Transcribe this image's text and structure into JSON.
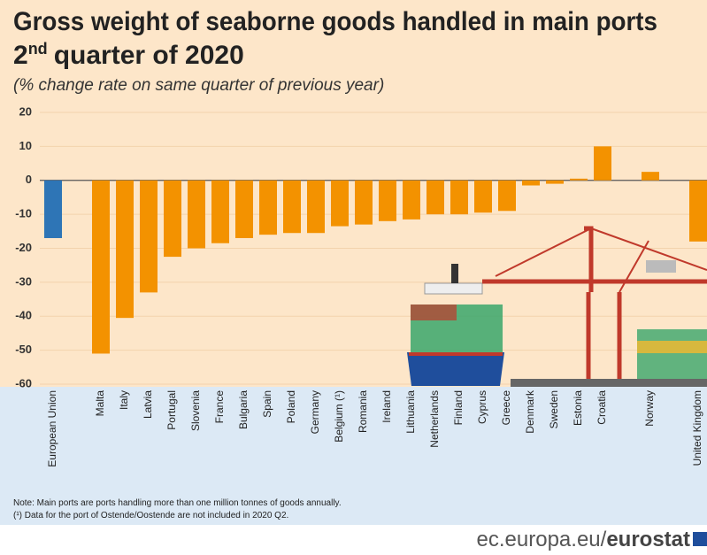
{
  "chart_data": {
    "type": "bar",
    "title": "Gross weight of seaborne goods handled in main ports",
    "title_line2": [
      "2",
      "nd",
      "quarter of 2020"
    ],
    "subtitle": "(% change rate on same quarter of previous year)",
    "categories": [
      "European Union",
      null,
      "Malta",
      "Italy",
      "Latvia",
      "Portugal",
      "Slovenia",
      "France",
      "Bulgaria",
      "Spain",
      "Poland",
      "Germany",
      "Belgium (¹)",
      "Romania",
      "Ireland",
      "Lithuania",
      "Netherlands",
      "Finland",
      "Cyprus",
      "Greece",
      "Denmark",
      "Sweden",
      "Estonia",
      "Croatia",
      null,
      "Norway",
      null,
      "United Kingdom"
    ],
    "values": [
      -17,
      null,
      -51,
      -40.5,
      -33,
      -22.5,
      -20,
      -18.5,
      -17,
      -16,
      -15.5,
      -15.5,
      -13.5,
      -13,
      -12,
      -11.5,
      -10,
      -10,
      -9.5,
      -9,
      -1.5,
      -1,
      0.5,
      10,
      null,
      2.5,
      null,
      -18
    ],
    "colors": [
      "#2e75b6",
      null,
      "#f39200",
      "#f39200",
      "#f39200",
      "#f39200",
      "#f39200",
      "#f39200",
      "#f39200",
      "#f39200",
      "#f39200",
      "#f39200",
      "#f39200",
      "#f39200",
      "#f39200",
      "#f39200",
      "#f39200",
      "#f39200",
      "#f39200",
      "#f39200",
      "#f39200",
      "#f39200",
      "#f39200",
      "#f39200",
      null,
      "#f39200",
      null,
      "#f39200"
    ],
    "ylim": [
      -60,
      20
    ],
    "yticks": [
      20,
      10,
      0,
      -10,
      -20,
      -30,
      -40,
      -50,
      -60
    ],
    "grid": true,
    "notes": [
      "Note: Main ports are ports handling more than one million tonnes of goods annually.",
      "(¹) Data for the port of Ostende/Oostende are not included in 2020 Q2."
    ],
    "source": [
      "ec.europa.eu/",
      "eurostat"
    ]
  }
}
